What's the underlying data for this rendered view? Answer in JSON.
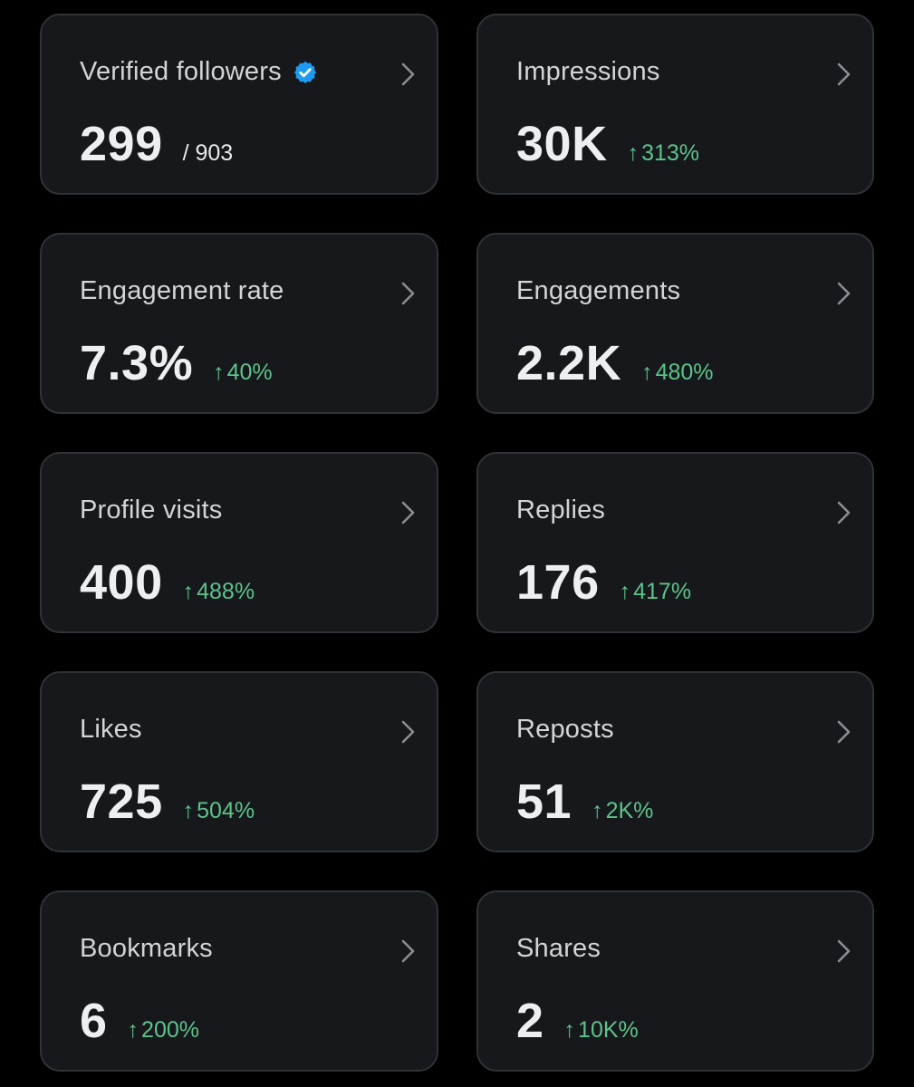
{
  "colors": {
    "background": "#000000",
    "card_background": "#16181c",
    "card_border": "#2f3336",
    "title_text": "#d3d4d6",
    "value_text": "#eeeff1",
    "positive_change": "#5dc389",
    "verified_badge": "#1d9bf0"
  },
  "cards": [
    {
      "title": "Verified followers",
      "value": "299",
      "subtotal": "/ 903",
      "icon": "verified-badge-icon"
    },
    {
      "title": "Impressions",
      "value": "30K",
      "change_arrow": "↑",
      "change": "313%"
    },
    {
      "title": "Engagement rate",
      "value": "7.3%",
      "change_arrow": "↑",
      "change": "40%"
    },
    {
      "title": "Engagements",
      "value": "2.2K",
      "change_arrow": "↑",
      "change": "480%"
    },
    {
      "title": "Profile visits",
      "value": "400",
      "change_arrow": "↑",
      "change": "488%"
    },
    {
      "title": "Replies",
      "value": "176",
      "change_arrow": "↑",
      "change": "417%"
    },
    {
      "title": "Likes",
      "value": "725",
      "change_arrow": "↑",
      "change": "504%"
    },
    {
      "title": "Reposts",
      "value": "51",
      "change_arrow": "↑",
      "change": "2K%"
    },
    {
      "title": "Bookmarks",
      "value": "6",
      "change_arrow": "↑",
      "change": "200%"
    },
    {
      "title": "Shares",
      "value": "2",
      "change_arrow": "↑",
      "change": "10K%"
    }
  ]
}
